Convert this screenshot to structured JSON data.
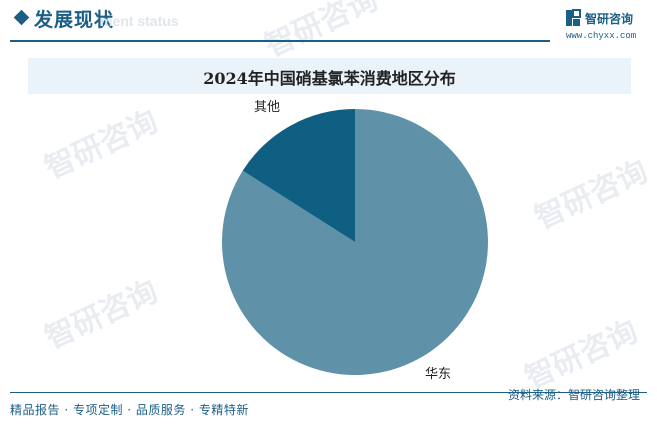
{
  "header": {
    "section_title": "发展现状",
    "section_title_en": "ment status",
    "logo_name": "智研咨询",
    "site_url": "www.chyxx.com"
  },
  "watermark_text": "智研咨询",
  "chart_data": {
    "type": "pie",
    "title": "2024年中国硝基氯苯消费地区分布",
    "slices": [
      {
        "label": "华东",
        "value": 84,
        "color": "#5f92a8"
      },
      {
        "label": "其他",
        "value": 16,
        "color": "#0f5f82"
      }
    ]
  },
  "footer": {
    "left_text": "精品报告 · 专项定制 · 品质服务 · 专精特新",
    "source_text": "资料来源：智研咨询整理"
  },
  "colors": {
    "accent": "#1b5f86",
    "title_band": "#eaf3fa"
  }
}
